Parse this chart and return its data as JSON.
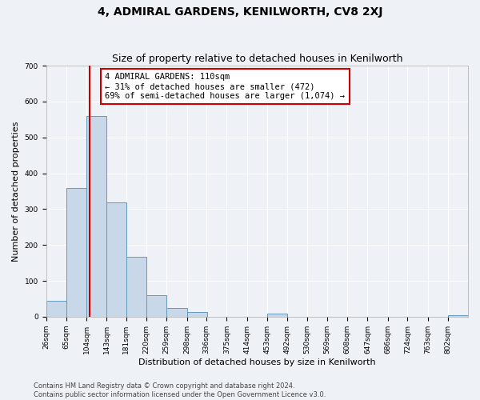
{
  "title": "4, ADMIRAL GARDENS, KENILWORTH, CV8 2XJ",
  "subtitle": "Size of property relative to detached houses in Kenilworth",
  "xlabel": "Distribution of detached houses by size in Kenilworth",
  "ylabel": "Number of detached properties",
  "bin_labels": [
    "26sqm",
    "65sqm",
    "104sqm",
    "143sqm",
    "181sqm",
    "220sqm",
    "259sqm",
    "298sqm",
    "336sqm",
    "375sqm",
    "414sqm",
    "453sqm",
    "492sqm",
    "530sqm",
    "569sqm",
    "608sqm",
    "647sqm",
    "686sqm",
    "724sqm",
    "763sqm",
    "802sqm"
  ],
  "bin_edges": [
    26,
    65,
    104,
    143,
    181,
    220,
    259,
    298,
    336,
    375,
    414,
    453,
    492,
    530,
    569,
    608,
    647,
    686,
    724,
    763,
    802
  ],
  "bar_heights": [
    45,
    358,
    560,
    318,
    168,
    60,
    25,
    12,
    0,
    0,
    0,
    8,
    0,
    0,
    0,
    0,
    0,
    0,
    0,
    0,
    5
  ],
  "bar_color": "#c8d8e8",
  "bar_edge_color": "#6699bb",
  "property_line_x": 110,
  "property_line_color": "#cc0000",
  "ylim": [
    0,
    700
  ],
  "yticks": [
    0,
    100,
    200,
    300,
    400,
    500,
    600,
    700
  ],
  "annotation_title": "4 ADMIRAL GARDENS: 110sqm",
  "annotation_line1": "← 31% of detached houses are smaller (472)",
  "annotation_line2": "69% of semi-detached houses are larger (1,074) →",
  "annotation_box_color": "#cc0000",
  "footer_line1": "Contains HM Land Registry data © Crown copyright and database right 2024.",
  "footer_line2": "Contains public sector information licensed under the Open Government Licence v3.0.",
  "bg_color": "#eef2f7",
  "grid_color": "#ffffff",
  "title_fontsize": 10,
  "subtitle_fontsize": 9,
  "axis_label_fontsize": 8,
  "tick_fontsize": 6.5,
  "annotation_fontsize": 7.5,
  "footer_fontsize": 6
}
